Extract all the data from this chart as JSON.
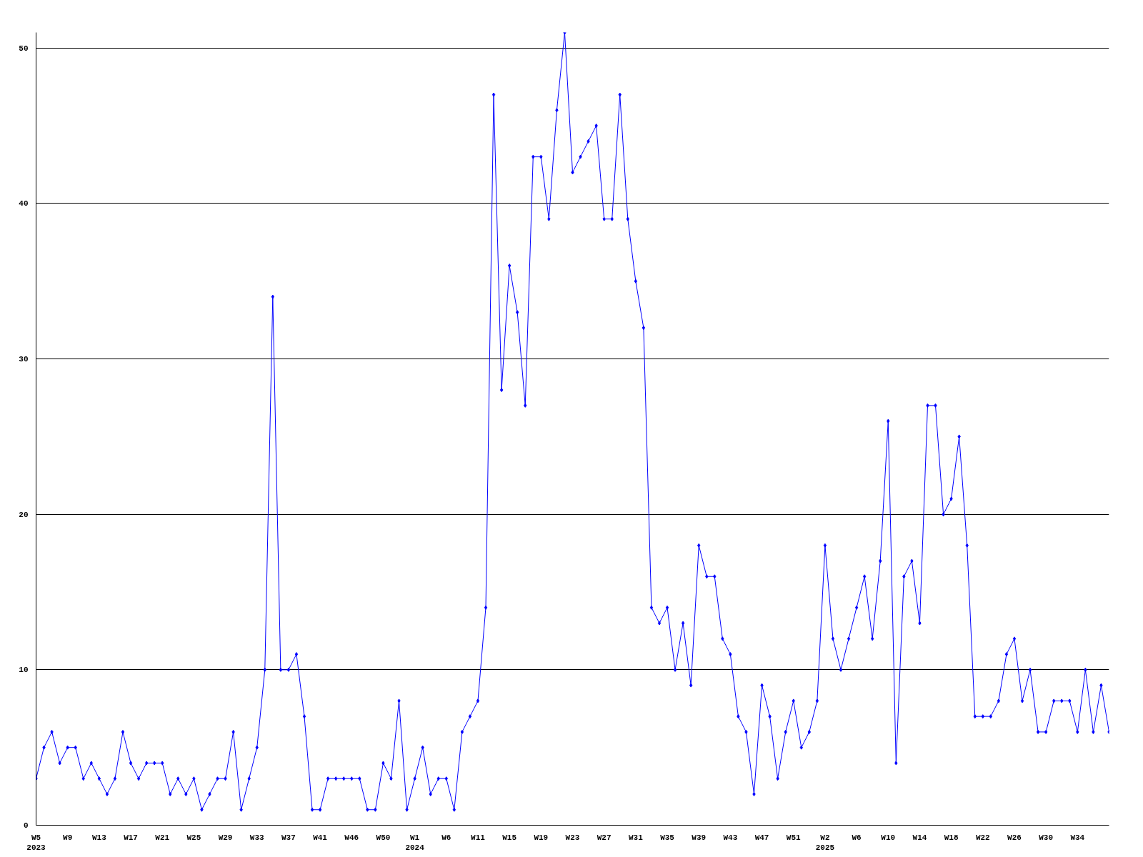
{
  "chart_data": {
    "type": "line",
    "categories": [
      "W5\n2023",
      null,
      null,
      null,
      "W9",
      null,
      null,
      null,
      "W13",
      null,
      null,
      null,
      "W17",
      null,
      null,
      null,
      "W21",
      null,
      null,
      null,
      "W25",
      null,
      null,
      null,
      "W29",
      null,
      null,
      null,
      "W33",
      null,
      null,
      null,
      "W37",
      null,
      null,
      null,
      "W41",
      null,
      null,
      null,
      "W46",
      null,
      null,
      null,
      "W50",
      null,
      null,
      null,
      "W1\n2024",
      null,
      null,
      null,
      "W6",
      null,
      null,
      null,
      "W11",
      null,
      null,
      null,
      "W15",
      null,
      null,
      null,
      "W19",
      null,
      null,
      null,
      "W23",
      null,
      null,
      null,
      "W27",
      null,
      null,
      null,
      "W31",
      null,
      null,
      null,
      "W35",
      null,
      null,
      null,
      "W39",
      null,
      null,
      null,
      "W43",
      null,
      null,
      null,
      "W47",
      null,
      null,
      null,
      "W51",
      null,
      null,
      null,
      "W2\n2025",
      null,
      null,
      null,
      "W6",
      null,
      null,
      null,
      "W10",
      null,
      null,
      null,
      "W14",
      null,
      null,
      null,
      "W18",
      null,
      null,
      null,
      "W22",
      null,
      null,
      null,
      "W26",
      null,
      null,
      null,
      "W30",
      null,
      null,
      null,
      "W34",
      null,
      null,
      null,
      null
    ],
    "series": [
      {
        "color": "#0000ff",
        "values": [
          3,
          5,
          6,
          4,
          5,
          5,
          3,
          4,
          3,
          2,
          3,
          6,
          4,
          3,
          4,
          4,
          4,
          2,
          3,
          2,
          3,
          1,
          2,
          3,
          3,
          6,
          1,
          3,
          5,
          10,
          34,
          10,
          10,
          11,
          7,
          1,
          1,
          3,
          3,
          3,
          3,
          3,
          1,
          1,
          4,
          3,
          8,
          1,
          3,
          5,
          2,
          3,
          3,
          1,
          6,
          7,
          8,
          14,
          47,
          28,
          36,
          33,
          27,
          43,
          43,
          39,
          46,
          51,
          42,
          43,
          44,
          45,
          39,
          39,
          47,
          39,
          35,
          32,
          14,
          13,
          14,
          10,
          13,
          9,
          18,
          16,
          16,
          12,
          11,
          7,
          6,
          2,
          9,
          7,
          3,
          6,
          8,
          5,
          6,
          8,
          18,
          12,
          10,
          12,
          14,
          16,
          12,
          17,
          26,
          4,
          16,
          17,
          13,
          27,
          27,
          20,
          21,
          25,
          18,
          7,
          7,
          7,
          8,
          11,
          12,
          8,
          10,
          6,
          6,
          8,
          8,
          8,
          6,
          10,
          6,
          9,
          6
        ]
      }
    ],
    "ylim": [
      0,
      51
    ],
    "yticks": [
      0,
      10,
      20,
      30,
      40,
      50
    ],
    "grid": "y",
    "marker": "diamond",
    "line_style": "solid"
  }
}
